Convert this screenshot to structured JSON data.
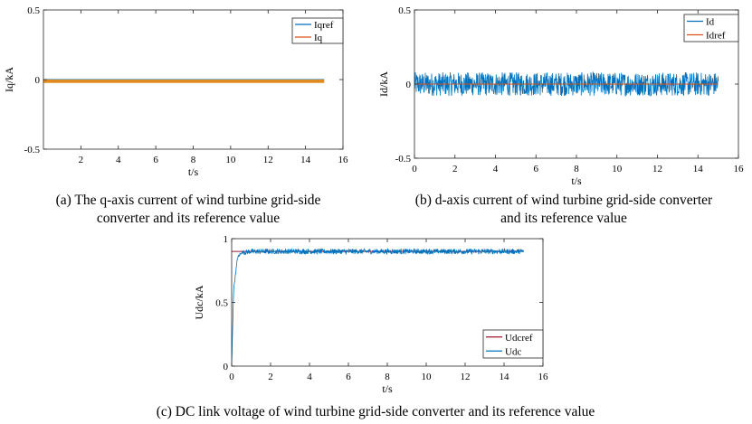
{
  "chart_data": [
    {
      "type": "line",
      "panel": "a",
      "caption_lines": [
        "(a) The q-axis current of wind turbine grid-side",
        "converter and its reference value"
      ],
      "xlabel": "t/s",
      "ylabel": "Iq/kA",
      "xlim": [
        0,
        16
      ],
      "ylim": [
        -0.5,
        0.5
      ],
      "xticks": [
        2,
        4,
        6,
        8,
        10,
        12,
        14,
        16
      ],
      "xtick_labels": [
        "2",
        "4",
        "6",
        "8",
        "10",
        "12",
        "14",
        "16"
      ],
      "yticks": [
        -0.5,
        0,
        0.5
      ],
      "ytick_labels": [
        "-0.5",
        "0",
        "0.5"
      ],
      "legend_position": "top-right",
      "grid": false,
      "series": [
        {
          "name": "Iqref",
          "color": "#0072BD",
          "x": [
            0,
            15
          ],
          "y": [
            0,
            0
          ],
          "style": "line"
        },
        {
          "name": "Iq",
          "color": "#D95319",
          "x": [
            0,
            15
          ],
          "y": [
            -0.012,
            -0.012
          ],
          "noise": 0.012,
          "style": "band",
          "band_color": "#E08A1E"
        }
      ]
    },
    {
      "type": "line",
      "panel": "b",
      "caption_lines": [
        "(b) d-axis current of wind turbine grid-side converter",
        "and its reference value"
      ],
      "xlabel": "t/s",
      "ylabel": "Id/kA",
      "xlim": [
        0,
        16
      ],
      "ylim": [
        -0.5,
        0.5
      ],
      "xticks": [
        0,
        2,
        4,
        6,
        8,
        10,
        12,
        14,
        16
      ],
      "xtick_labels": [
        "0",
        "2",
        "4",
        "6",
        "8",
        "10",
        "12",
        "14",
        "16"
      ],
      "yticks": [
        -0.5,
        0,
        0.5
      ],
      "ytick_labels": [
        "-0.5",
        "0",
        "0.5"
      ],
      "legend_position": "top-right",
      "grid": false,
      "series": [
        {
          "name": "Id",
          "color": "#0072BD",
          "x": [
            0,
            15
          ],
          "y": [
            0,
            0
          ],
          "noise": 0.08,
          "style": "noise"
        },
        {
          "name": "Idref",
          "color": "#D95319",
          "x": [
            0,
            15
          ],
          "y": [
            0,
            0
          ],
          "style": "line"
        }
      ]
    },
    {
      "type": "line",
      "panel": "c",
      "caption_lines": [
        "(c) DC link voltage of wind turbine grid-side converter and its reference value"
      ],
      "xlabel": "t/s",
      "ylabel": "Udc/kA",
      "xlim": [
        0,
        16
      ],
      "ylim": [
        0,
        1
      ],
      "xticks": [
        0,
        2,
        4,
        6,
        8,
        10,
        12,
        14,
        16
      ],
      "xtick_labels": [
        "0",
        "2",
        "4",
        "6",
        "8",
        "10",
        "12",
        "14",
        "16"
      ],
      "yticks": [
        0,
        0.5,
        1
      ],
      "ytick_labels": [
        "0",
        "0.5",
        "1"
      ],
      "legend_position": "bottom-right",
      "grid": false,
      "series": [
        {
          "name": "Udcref",
          "color": "#A2142F",
          "x": [
            0,
            15
          ],
          "y": [
            0.9,
            0.9
          ],
          "style": "line"
        },
        {
          "name": "Udc",
          "color": "#0072BD",
          "x": [
            0,
            0.1,
            0.3,
            0.5,
            1,
            15
          ],
          "y": [
            0,
            0.6,
            0.85,
            0.89,
            0.9,
            0.9
          ],
          "noise": 0.02,
          "style": "noise"
        }
      ]
    }
  ]
}
